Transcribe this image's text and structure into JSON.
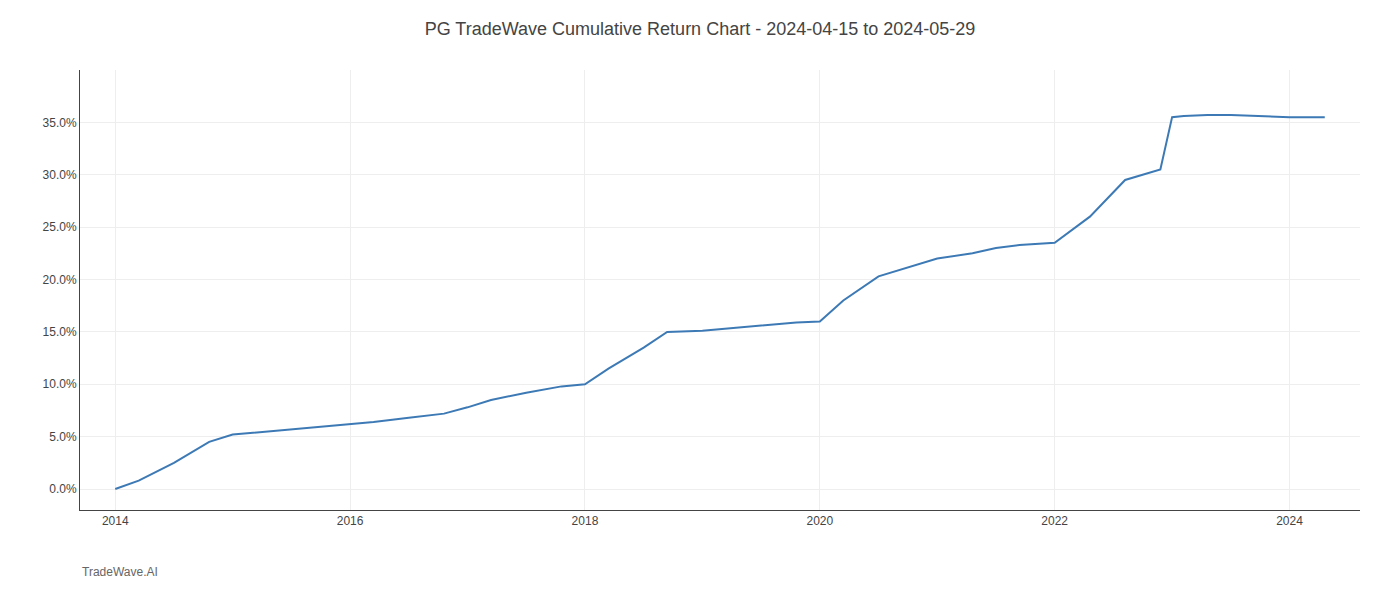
{
  "chart_data": {
    "type": "line",
    "title": "PG TradeWave Cumulative Return Chart - 2024-04-15 to 2024-05-29",
    "annotations": [
      "TradeWave.AI"
    ],
    "color": "#3d7ab5",
    "x": [
      2014.0,
      2014.2,
      2014.5,
      2014.8,
      2015.0,
      2015.3,
      2015.6,
      2015.9,
      2016.2,
      2016.5,
      2016.8,
      2017.0,
      2017.2,
      2017.5,
      2017.8,
      2018.0,
      2018.2,
      2018.5,
      2018.7,
      2019.0,
      2019.2,
      2019.4,
      2019.6,
      2019.8,
      2020.0,
      2020.2,
      2020.5,
      2020.7,
      2021.0,
      2021.3,
      2021.5,
      2021.7,
      2022.0,
      2022.3,
      2022.6,
      2022.9,
      2023.0,
      2023.1,
      2023.3,
      2023.5,
      2023.7,
      2024.0,
      2024.3
    ],
    "values": [
      0.0,
      0.8,
      2.5,
      4.5,
      5.2,
      5.5,
      5.8,
      6.1,
      6.4,
      6.8,
      7.2,
      7.8,
      8.5,
      9.2,
      9.8,
      10.0,
      11.5,
      13.5,
      15.0,
      15.1,
      15.3,
      15.5,
      15.7,
      15.9,
      16.0,
      18.0,
      20.3,
      21.0,
      22.0,
      22.5,
      23.0,
      23.3,
      23.5,
      26.0,
      29.5,
      30.5,
      35.5,
      35.6,
      35.7,
      35.7,
      35.6,
      35.5,
      35.5
    ],
    "xlim": [
      2013.7,
      2024.6
    ],
    "ylim": [
      -2.0,
      40.0
    ],
    "xticks": [
      2014,
      2016,
      2018,
      2020,
      2022,
      2024
    ],
    "yticks": [
      {
        "value": 0.0,
        "label": "0.0%"
      },
      {
        "value": 5.0,
        "label": "5.0%"
      },
      {
        "value": 10.0,
        "label": "10.0%"
      },
      {
        "value": 15.0,
        "label": "15.0%"
      },
      {
        "value": 20.0,
        "label": "20.0%"
      },
      {
        "value": 25.0,
        "label": "25.0%"
      },
      {
        "value": 30.0,
        "label": "30.0%"
      },
      {
        "value": 35.0,
        "label": "35.0%"
      }
    ],
    "grid": true
  }
}
